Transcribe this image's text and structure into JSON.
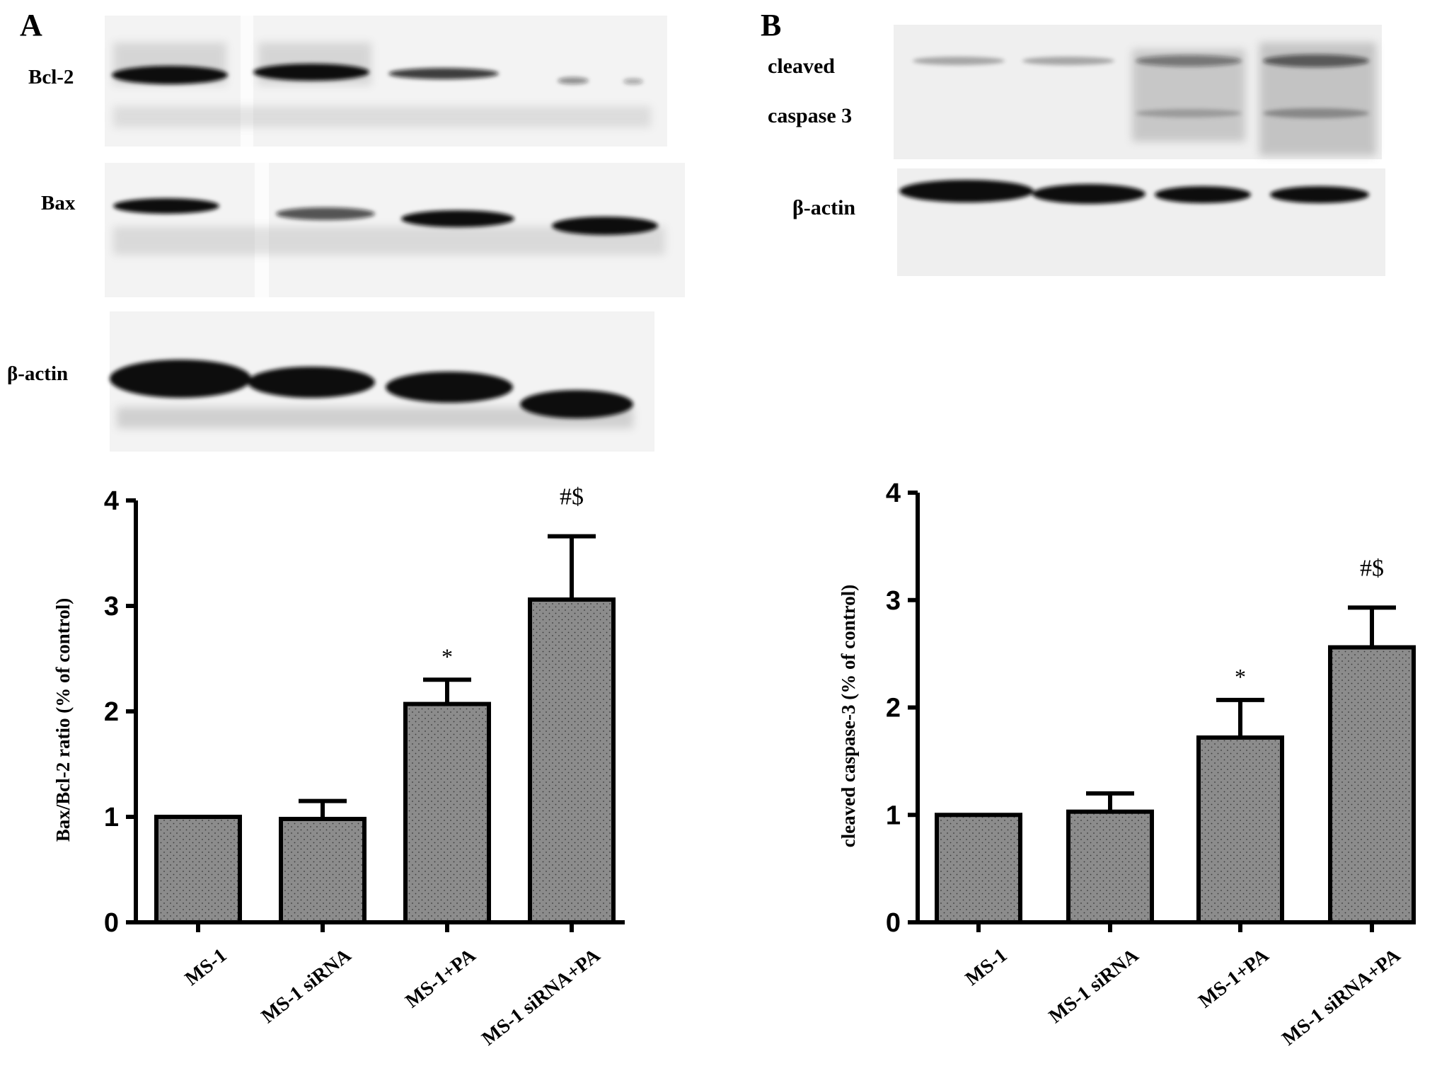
{
  "panels": {
    "A": {
      "letter": "A",
      "blot_labels": [
        "Bcl-2",
        "Bax",
        "β-actin"
      ]
    },
    "B": {
      "letter": "B",
      "blot_labels": [
        "cleaved",
        "caspase 3",
        "β-actin"
      ]
    }
  },
  "colors": {
    "bar_fill": "#8c8c8c",
    "axis": "#000000",
    "blot_background": "#f2f2f2"
  },
  "chart_data": [
    {
      "type": "bar",
      "panel": "A",
      "categories": [
        "MS-1",
        "MS-1  siRNA",
        "MS-1+PA",
        "MS-1  siRNA+PA"
      ],
      "values": [
        1.0,
        0.98,
        2.07,
        3.06
      ],
      "errors": [
        0.0,
        0.17,
        0.23,
        0.6
      ],
      "annotations": [
        "",
        "",
        "*",
        "#$"
      ],
      "ylabel": "Bax/Bcl-2 ratio (% of control)",
      "ylim": [
        0,
        4
      ],
      "yticks": [
        "0",
        "1",
        "2",
        "3",
        "4"
      ],
      "grid": false
    },
    {
      "type": "bar",
      "panel": "B",
      "categories": [
        "MS-1",
        "MS-1  siRNA",
        "MS-1+PA",
        "MS-1  siRNA+PA"
      ],
      "values": [
        1.0,
        1.03,
        1.72,
        2.56
      ],
      "errors": [
        0.0,
        0.17,
        0.35,
        0.37
      ],
      "annotations": [
        "",
        "",
        "*",
        "#$"
      ],
      "ylabel": "cleaved caspase-3 (% of control)",
      "ylim": [
        0,
        4
      ],
      "yticks": [
        "0",
        "1",
        "2",
        "3",
        "4"
      ],
      "grid": false
    }
  ]
}
